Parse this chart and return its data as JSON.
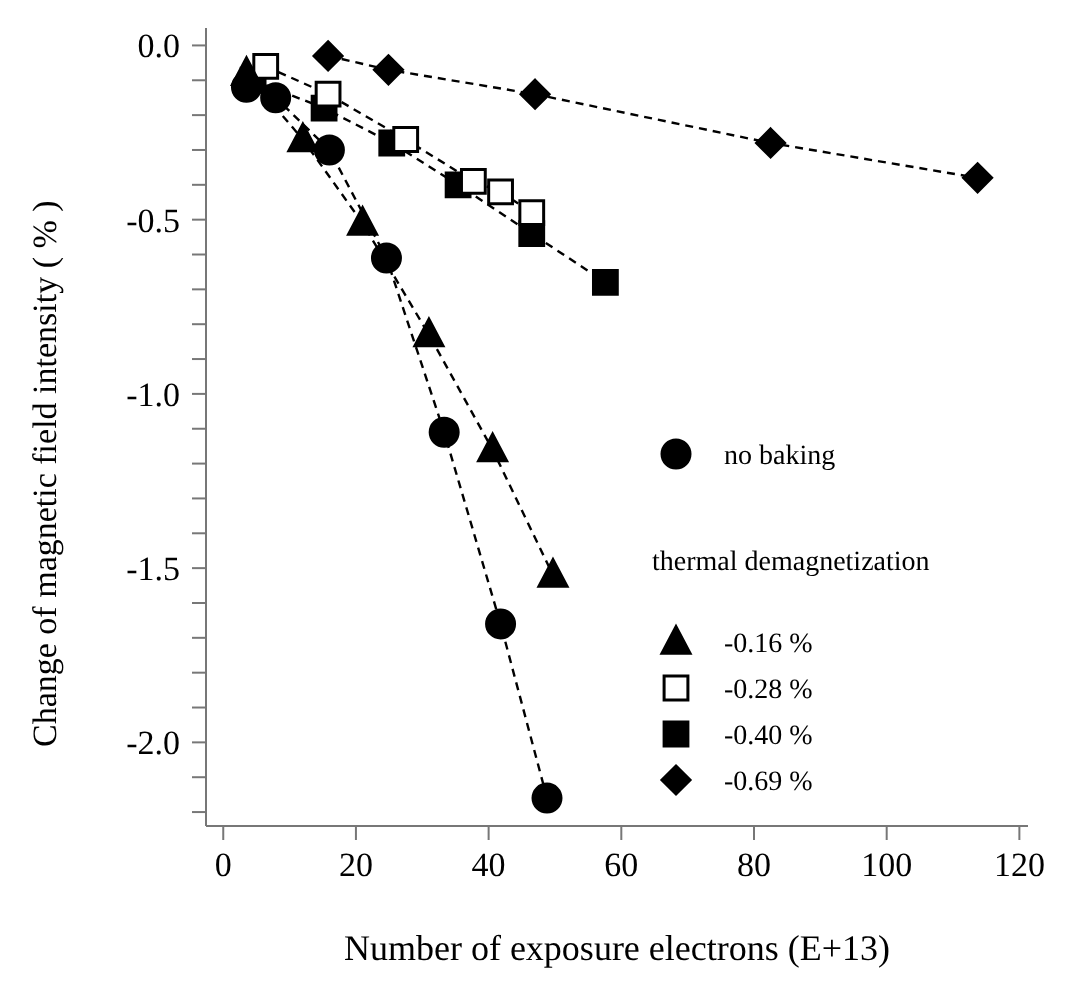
{
  "chart_data": {
    "type": "line",
    "xlabel": "Number of exposure electrons (E+13)",
    "ylabel": "Change of magnetic field intensity ( % )",
    "legend_title": "thermal demagnetization",
    "xlim": [
      -2.6,
      121.3
    ],
    "ylim": [
      -2.24,
      0.05
    ],
    "xticks": [
      0,
      20,
      40,
      60,
      80,
      100,
      120
    ],
    "yticks": [
      {
        "value": 0,
        "label": "0.0"
      },
      {
        "value": -0.1,
        "label": null
      },
      {
        "value": -0.2,
        "label": null
      },
      {
        "value": -0.3,
        "label": null
      },
      {
        "value": -0.4,
        "label": null
      },
      {
        "value": -0.5,
        "label": "-0.5"
      },
      {
        "value": -0.6,
        "label": null
      },
      {
        "value": -0.7,
        "label": null
      },
      {
        "value": -0.8,
        "label": null
      },
      {
        "value": -0.9,
        "label": null
      },
      {
        "value": -1,
        "label": "-1.0"
      },
      {
        "value": -1.1,
        "label": null
      },
      {
        "value": -1.2,
        "label": null
      },
      {
        "value": -1.3,
        "label": null
      },
      {
        "value": -1.4,
        "label": null
      },
      {
        "value": -1.5,
        "label": "-1.5"
      },
      {
        "value": -1.6,
        "label": null
      },
      {
        "value": -1.7,
        "label": null
      },
      {
        "value": -1.8,
        "label": null
      },
      {
        "value": -1.9,
        "label": null
      },
      {
        "value": -2,
        "label": "-2.0"
      },
      {
        "value": -2.1,
        "label": null
      },
      {
        "value": -2.2,
        "label": null
      }
    ],
    "grid": false,
    "legend": "right",
    "line_style": "dashed",
    "series": [
      {
        "name": "no baking",
        "color": "#000000",
        "marker": "circle",
        "x": [
          3.5,
          7.9,
          16,
          24.6,
          33.3,
          41.8,
          48.8
        ],
        "values": [
          -0.12,
          -0.15,
          -0.3,
          -0.61,
          -1.11,
          -1.66,
          -2.16
        ]
      },
      {
        "name": "-0.16 %",
        "color": "#000000",
        "marker": "triangle",
        "x": [
          3.5,
          12,
          21,
          31,
          40.6,
          49.7
        ],
        "values": [
          -0.08,
          -0.27,
          -0.51,
          -0.83,
          -1.16,
          -1.52
        ]
      },
      {
        "name": "-0.28 %",
        "color": "#ffffff",
        "marker": "square",
        "x": [
          6.4,
          15.8,
          27.5,
          37.7,
          41.8,
          46.5
        ],
        "values": [
          -0.06,
          -0.14,
          -0.27,
          -0.39,
          -0.42,
          -0.48
        ]
      },
      {
        "name": "-0.40 %",
        "color": "#000000",
        "marker": "square",
        "x": [
          4.5,
          15.2,
          25.4,
          35.4,
          46.5,
          57.6
        ],
        "values": [
          -0.1,
          -0.18,
          -0.28,
          -0.4,
          -0.54,
          -0.68
        ]
      },
      {
        "name": "-0.69 %",
        "color": "#000000",
        "marker": "diamond",
        "x": [
          15.8,
          24.9,
          47,
          82.5,
          113.7
        ],
        "values": [
          -0.03,
          -0.07,
          -0.14,
          -0.28,
          -0.38
        ]
      }
    ]
  }
}
